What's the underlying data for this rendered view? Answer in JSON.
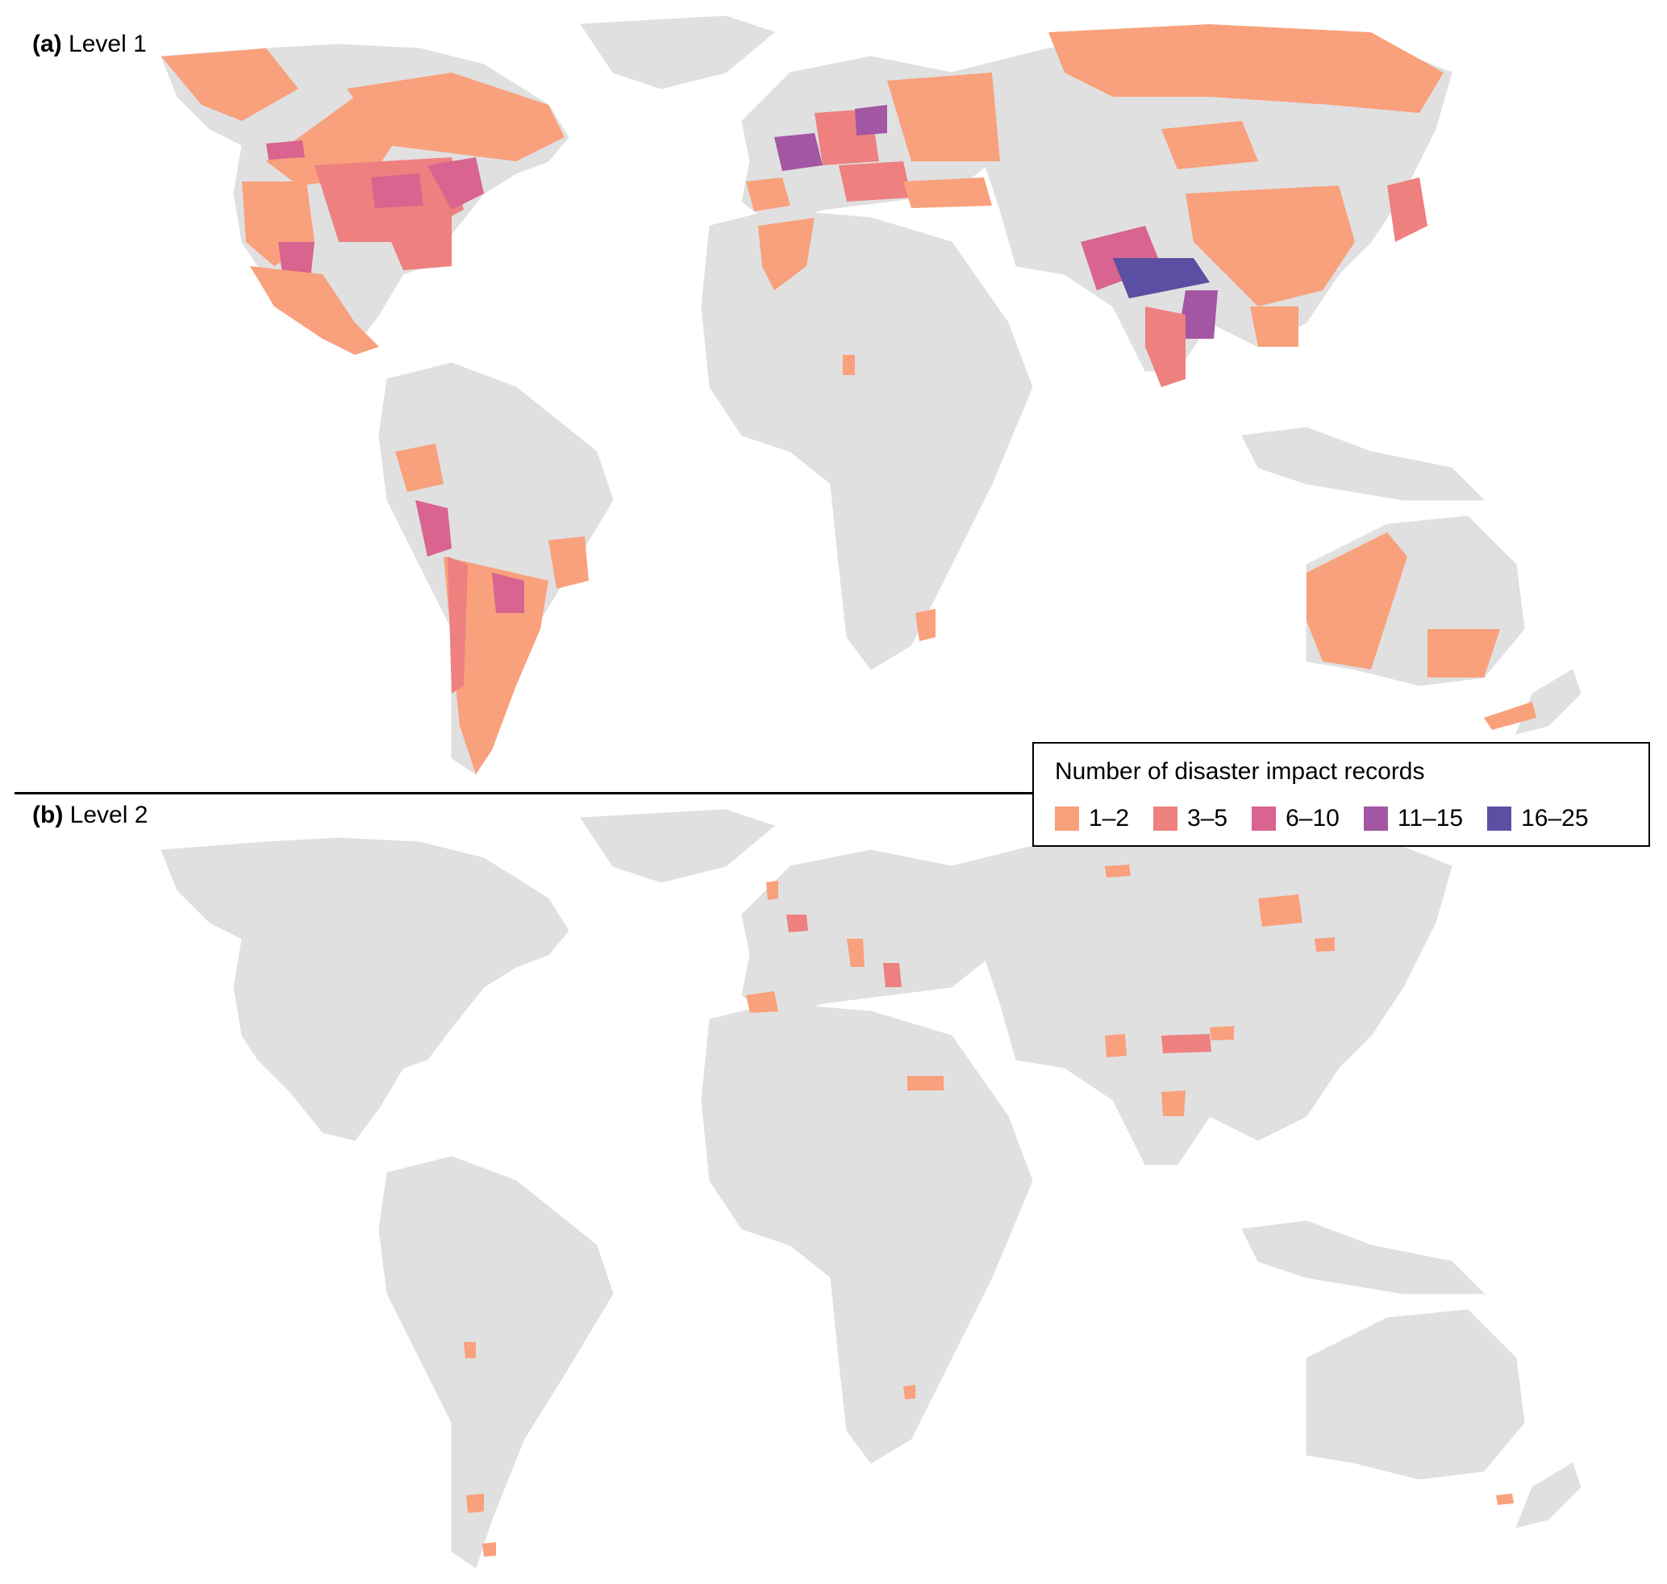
{
  "panels": [
    {
      "tag": "(a)",
      "label": "Level 1"
    },
    {
      "tag": "(b)",
      "label": "Level 2"
    }
  ],
  "legend": {
    "title": "Number of disaster impact records",
    "items": [
      {
        "label": "1–2",
        "color": "#f9a07c"
      },
      {
        "label": "3–5",
        "color": "#ee8080"
      },
      {
        "label": "6–10",
        "color": "#d8648f"
      },
      {
        "label": "11–15",
        "color": "#a356a3"
      },
      {
        "label": "16–25",
        "color": "#5b4fa3"
      }
    ]
  },
  "colors": {
    "land": "#e0e0e0",
    "background": "#ffffff"
  }
}
